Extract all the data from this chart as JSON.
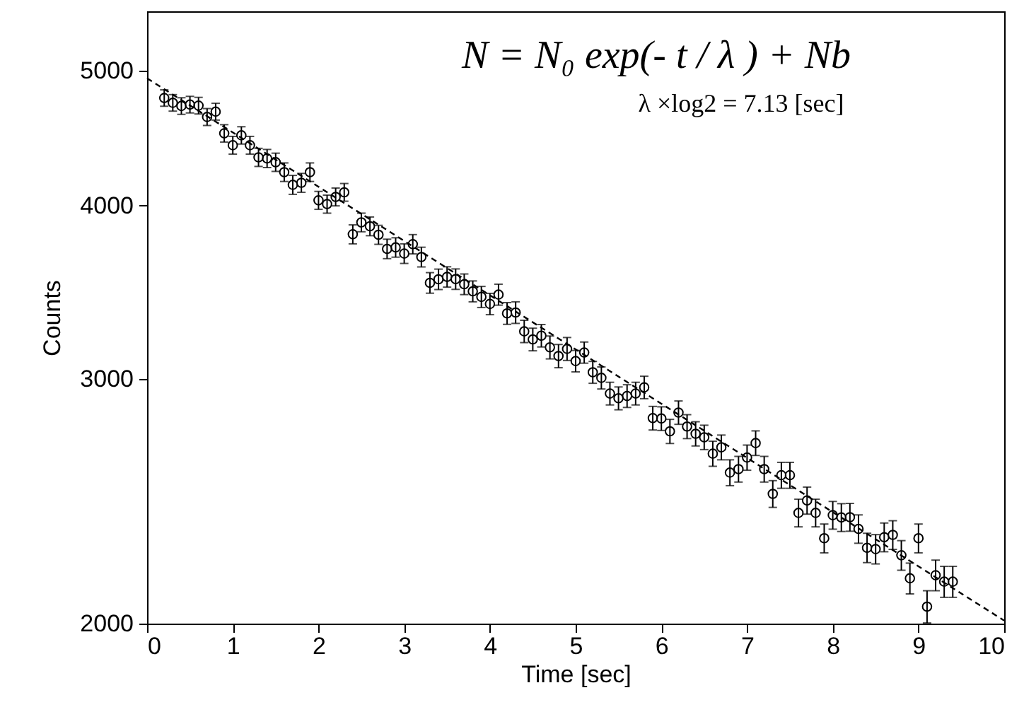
{
  "chart_data": {
    "type": "scatter",
    "xlabel": "Time [sec]",
    "ylabel": "Counts",
    "annotations": [
      "N = N₀ exp(- t / λ ) + Nb",
      "λ ×log2 = 7.13 [sec]"
    ],
    "log": "y",
    "grid": false,
    "xlim": [
      0,
      10
    ],
    "xticks": [
      0,
      1,
      2,
      3,
      4,
      5,
      6,
      7,
      8,
      9,
      10
    ],
    "ylim": [
      2000,
      5520
    ],
    "yticks": [
      2000,
      3000,
      4000,
      5000
    ],
    "series": [
      {
        "color": "#000000",
        "marker": "circle",
        "x": [
          0.2,
          0.3,
          0.4,
          0.5,
          0.6,
          0.7,
          0.8,
          0.9,
          1.0,
          1.1,
          1.2,
          1.3,
          1.4,
          1.5,
          1.6,
          1.7,
          1.8,
          1.9,
          2.0,
          2.1,
          2.2,
          2.3,
          2.4,
          2.5,
          2.6,
          2.7,
          2.8,
          2.9,
          3.0,
          3.1,
          3.2,
          3.3,
          3.4,
          3.5,
          3.6,
          3.7,
          3.8,
          3.9,
          4.0,
          4.1,
          4.2,
          4.3,
          4.4,
          4.5,
          4.6,
          4.7,
          4.8,
          4.9,
          5.0,
          5.1,
          5.2,
          5.3,
          5.4,
          5.5,
          5.6,
          5.7,
          5.8,
          5.9,
          6.0,
          6.1,
          6.2,
          6.3,
          6.4,
          6.5,
          6.6,
          6.7,
          6.8,
          6.9,
          7.0,
          7.1,
          7.2,
          7.3,
          7.4,
          7.5,
          7.6,
          7.7,
          7.8,
          7.9,
          8.0,
          8.1,
          8.2,
          8.3,
          8.4,
          8.5,
          8.6,
          8.7,
          8.8,
          8.9,
          9.0,
          9.1,
          9.2,
          9.3,
          9.4
        ],
        "values": [
          4781,
          4743,
          4718,
          4729,
          4721,
          4633,
          4674,
          4509,
          4421,
          4494,
          4421,
          4333,
          4325,
          4298,
          4228,
          4140,
          4154,
          4228,
          4035,
          4010,
          4058,
          4089,
          3814,
          3890,
          3865,
          3811,
          3723,
          3732,
          3694,
          3752,
          3673,
          3519,
          3540,
          3554,
          3541,
          3511,
          3470,
          3438,
          3398,
          3451,
          3345,
          3350,
          3247,
          3204,
          3224,
          3162,
          3117,
          3154,
          3091,
          3135,
          3034,
          3006,
          2929,
          2906,
          2917,
          2929,
          2959,
          2812,
          2810,
          2751,
          2838,
          2773,
          2740,
          2724,
          2651,
          2679,
          2569,
          2584,
          2634,
          2698,
          2584,
          2480,
          2558,
          2558,
          2403,
          2453,
          2403,
          2304,
          2394,
          2385,
          2386,
          2340,
          2268,
          2263,
          2308,
          2317,
          2240,
          2156,
          2304,
          2057,
          2167,
          2144,
          2144
        ],
        "errors": [
          65,
          65,
          65,
          65,
          65,
          65,
          65,
          65,
          65,
          65,
          65,
          65,
          65,
          65,
          65,
          65,
          65,
          65,
          60,
          60,
          60,
          60,
          60,
          60,
          60,
          60,
          60,
          60,
          60,
          60,
          60,
          60,
          60,
          60,
          60,
          60,
          60,
          60,
          60,
          60,
          60,
          60,
          60,
          60,
          60,
          60,
          60,
          60,
          55,
          55,
          55,
          55,
          55,
          55,
          55,
          55,
          55,
          55,
          55,
          55,
          55,
          55,
          55,
          55,
          55,
          55,
          55,
          55,
          55,
          55,
          55,
          55,
          55,
          55,
          55,
          55,
          55,
          55,
          55,
          55,
          55,
          55,
          55,
          55,
          55,
          55,
          55,
          55,
          55,
          55,
          55,
          55,
          55
        ]
      },
      {
        "type": "line",
        "color": "#000000",
        "line_style": "dashed",
        "marker": "none",
        "x": [
          0,
          10
        ],
        "values": [
          4940,
          2010
        ]
      }
    ]
  }
}
